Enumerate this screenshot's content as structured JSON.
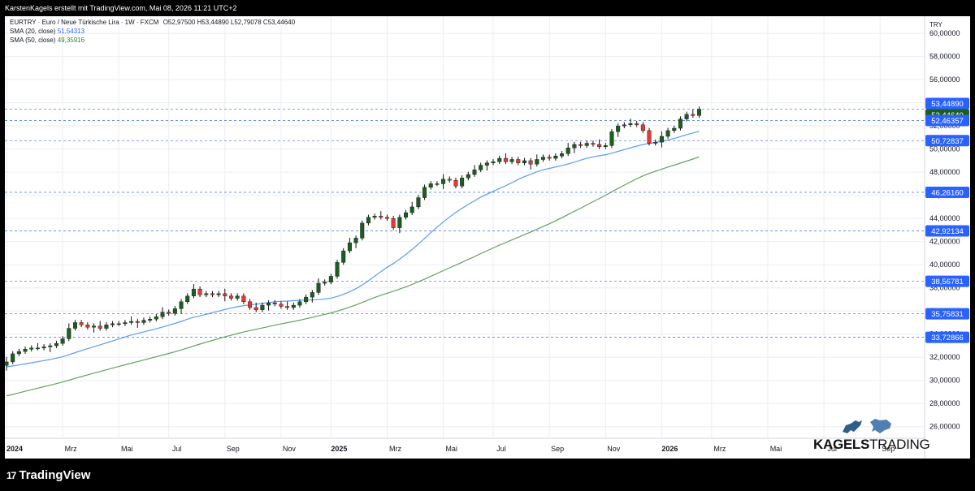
{
  "header": {
    "caption": "KarstenKagels erstellt mit TradingView.com, Mai 08, 2026 11:21 UTC+2"
  },
  "legend": {
    "symbol_line": "EURTRY · Euro / Neue Türkische Lira · 1W · FXCM",
    "ohlc": "O52,97500  H53,44890  L52,79078  C53,44640",
    "sma20_label": "SMA (20, close)",
    "sma20_value": "51,54313",
    "sma50_label": "SMA (50, close)",
    "sma50_value": "49,35916"
  },
  "axis_unit": "TRY",
  "brand": {
    "bold": "KAGELS",
    "light": "TRADING"
  },
  "footer": {
    "logo_mark": "17",
    "logo_text": "TradingView"
  },
  "colors": {
    "up": "#1b5e20",
    "down": "#e53935",
    "sma20": "#5b9cf6",
    "sma50": "#6a9e62",
    "level": "#2962ff"
  },
  "chart_data": {
    "type": "candlestick",
    "y_ticks": [
      "60,00000",
      "58,00000",
      "56,00000",
      "54,00000",
      "52,00000",
      "50,00000",
      "48,00000",
      "46,00000",
      "44,00000",
      "42,00000",
      "40,00000",
      "38,00000",
      "36,00000",
      "34,00000",
      "32,00000",
      "30,00000",
      "28,00000",
      "26,00000"
    ],
    "ylim": [
      25.0,
      60.5
    ],
    "x_labels": [
      {
        "label": "2024",
        "w": 0,
        "bold": true
      },
      {
        "label": "Mrz",
        "w": 9
      },
      {
        "label": "Mai",
        "w": 18
      },
      {
        "label": "Jul",
        "w": 26
      },
      {
        "label": "Sep",
        "w": 35
      },
      {
        "label": "Nov",
        "w": 44
      },
      {
        "label": "2025",
        "w": 52,
        "bold": true
      },
      {
        "label": "Mrz",
        "w": 61
      },
      {
        "label": "Mai",
        "w": 70
      },
      {
        "label": "Jul",
        "w": 78
      },
      {
        "label": "Sep",
        "w": 87
      },
      {
        "label": "Nov",
        "w": 96
      },
      {
        "label": "2026",
        "w": 105,
        "bold": true
      },
      {
        "label": "Mrz",
        "w": 113
      },
      {
        "label": "Mai",
        "w": 122
      },
      {
        "label": "Jul",
        "w": 131
      },
      {
        "label": "Sep",
        "w": 140
      }
    ],
    "closes": [
      31.6,
      32.3,
      32.5,
      32.7,
      32.8,
      32.8,
      32.9,
      33.0,
      33.2,
      33.6,
      34.5,
      35.0,
      34.8,
      34.6,
      34.7,
      34.5,
      34.8,
      34.9,
      34.9,
      35.0,
      35.1,
      35.0,
      35.2,
      35.3,
      35.5,
      35.9,
      35.8,
      36.2,
      36.8,
      37.3,
      37.9,
      37.4,
      37.5,
      37.4,
      37.5,
      37.3,
      37.1,
      37.3,
      36.8,
      36.3,
      36.1,
      36.5,
      36.7,
      36.6,
      36.4,
      36.3,
      36.5,
      36.8,
      37.2,
      37.6,
      38.4,
      38.5,
      39.0,
      40.2,
      41.2,
      41.9,
      42.3,
      43.6,
      44.1,
      44.2,
      44.1,
      44.0,
      43.2,
      44.1,
      44.5,
      45.0,
      45.8,
      46.7,
      47.0,
      47.0,
      47.4,
      47.3,
      46.8,
      47.5,
      47.8,
      48.2,
      48.6,
      48.8,
      48.9,
      49.2,
      48.9,
      49.1,
      48.8,
      49.0,
      48.7,
      49.1,
      49.3,
      49.2,
      49.4,
      49.6,
      50.1,
      50.4,
      50.3,
      50.5,
      50.4,
      50.2,
      50.3,
      51.5,
      52.0,
      52.1,
      52.2,
      52.1,
      51.6,
      50.5,
      50.6,
      51.1,
      51.6,
      51.8,
      52.6,
      53.0,
      52.9,
      53.4464
    ],
    "sma20_start": 30.7,
    "sma50_start": 25.6,
    "levels": [
      {
        "value": 53.4489,
        "label": "53,44890",
        "style": "price"
      },
      {
        "value": 53.4464,
        "label": "53,44640",
        "style": "close"
      },
      {
        "value": 52.46357,
        "label": "52,46357",
        "style": "level"
      },
      {
        "value": 50.72837,
        "label": "50,72837",
        "style": "level"
      },
      {
        "value": 46.2616,
        "label": "46,26160",
        "style": "level"
      },
      {
        "value": 42.92134,
        "label": "42,92134",
        "style": "level"
      },
      {
        "value": 38.56781,
        "label": "38,56781",
        "style": "level"
      },
      {
        "value": 35.75831,
        "label": "35,75831",
        "style": "level"
      },
      {
        "value": 33.72866,
        "label": "33,72866",
        "style": "level"
      }
    ]
  }
}
